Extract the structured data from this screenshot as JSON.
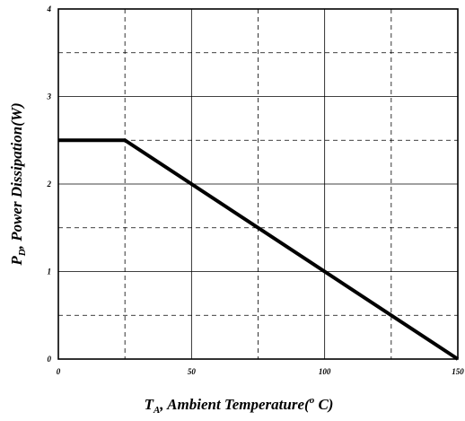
{
  "chart_data": {
    "type": "line",
    "xlim": [
      0,
      150
    ],
    "ylim": [
      0,
      4
    ],
    "x_ticks": [
      0,
      50,
      100,
      150
    ],
    "y_ticks": [
      0,
      1,
      2,
      3,
      4
    ],
    "x_minor_grid": [
      25,
      75,
      125
    ],
    "y_minor_grid": [
      0.5,
      1.5,
      2.5,
      3.5
    ],
    "grid": true,
    "xlabel": {
      "main": "T",
      "sub": "A",
      "rest": ", Ambient Temperature(",
      "sup": "o",
      "end": " C)"
    },
    "ylabel": {
      "main": "P",
      "sub": "D",
      "rest": ", Power Dissipation(W)"
    },
    "series": [
      {
        "x": [
          0,
          25,
          150
        ],
        "y": [
          2.5,
          2.5,
          0
        ]
      }
    ],
    "colors": {
      "line": "#000000",
      "grid": "#000000",
      "background": "#ffffff"
    }
  }
}
